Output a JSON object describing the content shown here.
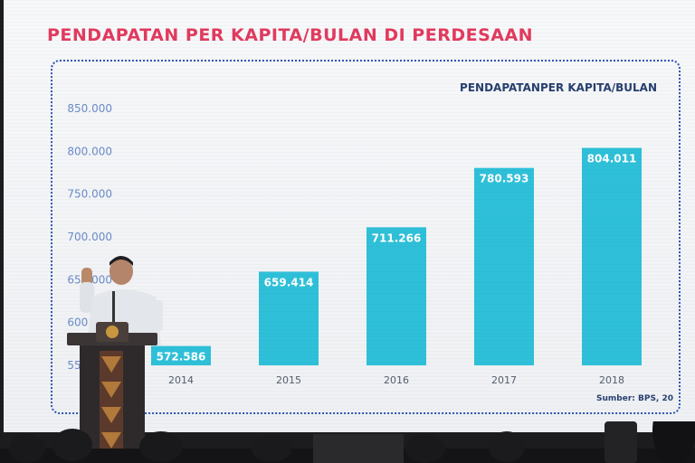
{
  "slide": {
    "title": "PENDAPATAN PER KAPITA/BULAN DI PERDESAAN",
    "chart_subtitle": "PENDAPATANPER KAPITA/BULAN",
    "source": "Sumber: BPS, 20"
  },
  "colors": {
    "title": "#e23a5e",
    "bar": "#2fc0d9",
    "frame": "#2f55b3",
    "axis_text": "#6b8bc8"
  },
  "chart_data": {
    "type": "bar",
    "title": "PENDAPATAN PER KAPITA/BULAN DI PERDESAAN",
    "categories": [
      "2014",
      "2015",
      "2016",
      "2017",
      "2018"
    ],
    "values": [
      572586,
      659414,
      711266,
      780593,
      804011
    ],
    "value_labels": [
      "572.586",
      "659.414",
      "711.266",
      "780.593",
      "804.011"
    ],
    "y_ticks": [
      "550.000",
      "600.000",
      "650.000",
      "700.000",
      "750.000",
      "800.000",
      "850.000"
    ],
    "y_tick_values": [
      550000,
      600000,
      650000,
      700000,
      750000,
      800000,
      850000
    ],
    "ylim": [
      550000,
      850000
    ],
    "grid": false,
    "legend": "none"
  }
}
